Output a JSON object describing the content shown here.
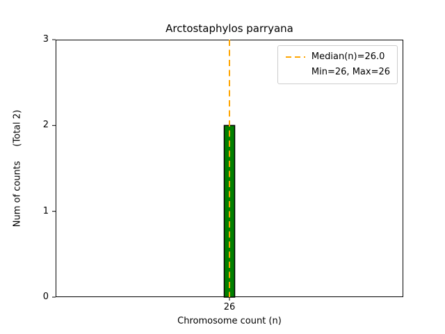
{
  "chart_data": {
    "type": "bar",
    "title": "Arctostaphylos parryana",
    "xlabel": "Chromosome count (n)",
    "ylabel": "Num of counts     (Total 2)",
    "categories": [
      "26"
    ],
    "values": [
      2
    ],
    "x_ticks": [
      "26"
    ],
    "y_ticks": [
      0,
      1,
      2,
      3
    ],
    "ylim": [
      0,
      3
    ],
    "grid": false,
    "bar_color": "#008000",
    "bar_edge_color": "#000000",
    "median_line": {
      "value": 26.0,
      "color": "#ffa500",
      "style": "dashed"
    },
    "legend": {
      "position": "upper right",
      "entries": [
        {
          "label": "Median(n)=26.0",
          "marker": "dashed-line",
          "color": "#ffa500"
        },
        {
          "label": "Min=26, Max=26",
          "marker": "none"
        }
      ]
    }
  }
}
